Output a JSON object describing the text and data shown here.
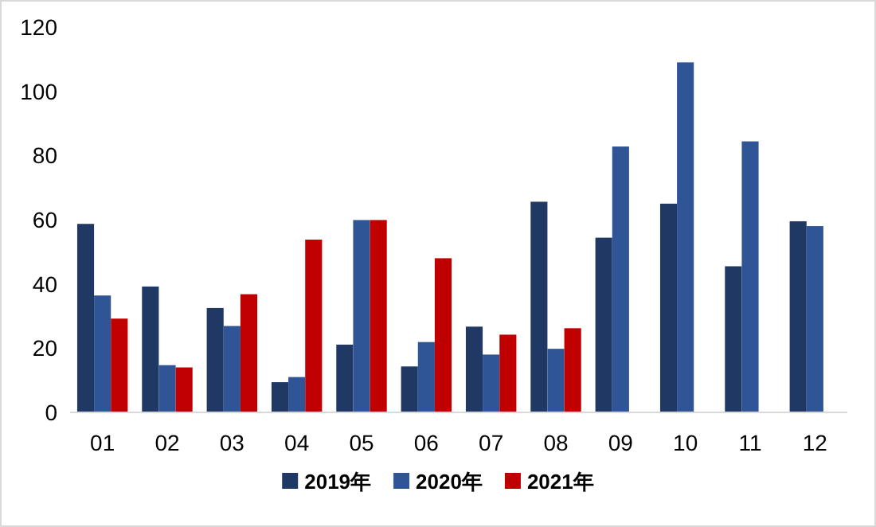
{
  "chart_data": {
    "type": "bar",
    "categories": [
      "01",
      "02",
      "03",
      "04",
      "05",
      "06",
      "07",
      "08",
      "09",
      "10",
      "11",
      "12"
    ],
    "series": [
      {
        "name": "2019年",
        "color": "#203864",
        "values": [
          58.7,
          39.2,
          32.5,
          9.4,
          21.1,
          14.3,
          26.7,
          65.6,
          54.4,
          65.0,
          45.5,
          59.5
        ]
      },
      {
        "name": "2020年",
        "color": "#2f5597",
        "values": [
          36.4,
          14.7,
          26.9,
          11.0,
          59.9,
          21.9,
          18.0,
          19.8,
          82.8,
          109.0,
          84.4,
          58.0
        ]
      },
      {
        "name": "2021年",
        "color": "#c00000",
        "values": [
          29.2,
          14.0,
          36.8,
          53.8,
          59.9,
          48.0,
          24.2,
          26.2,
          null,
          null,
          null,
          null
        ]
      }
    ],
    "ylim": [
      0,
      120
    ],
    "yticks": [
      0,
      20,
      40,
      60,
      80,
      100,
      120
    ],
    "grid": false,
    "legend": "bottom"
  }
}
